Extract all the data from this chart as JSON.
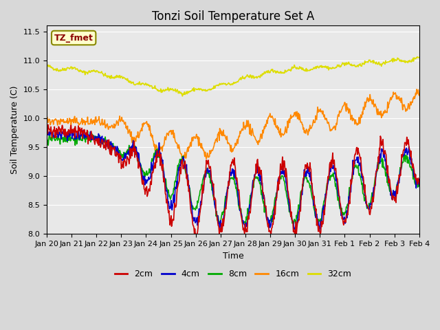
{
  "title": "Tonzi Soil Temperature Set A",
  "xlabel": "Time",
  "ylabel": "Soil Temperature (C)",
  "ylim": [
    8.0,
    11.6
  ],
  "yticks": [
    8.0,
    8.5,
    9.0,
    9.5,
    10.0,
    10.5,
    11.0,
    11.5
  ],
  "xtick_labels": [
    "Jan 20",
    "Jan 21",
    "Jan 22",
    "Jan 23",
    "Jan 24",
    "Jan 25",
    "Jan 26",
    "Jan 27",
    "Jan 28",
    "Jan 29",
    "Jan 30",
    "Jan 31",
    "Feb 1",
    "Feb 2",
    "Feb 3",
    "Feb 4"
  ],
  "n_days": 16,
  "colors": {
    "2cm": "#cc0000",
    "4cm": "#0000cc",
    "8cm": "#00aa00",
    "16cm": "#ff8800",
    "32cm": "#dddd00"
  },
  "legend_label": "TZ_fmet",
  "legend_box_color": "#ffffcc",
  "legend_box_edge": "#888800",
  "plot_bg_color": "#e8e8e8"
}
